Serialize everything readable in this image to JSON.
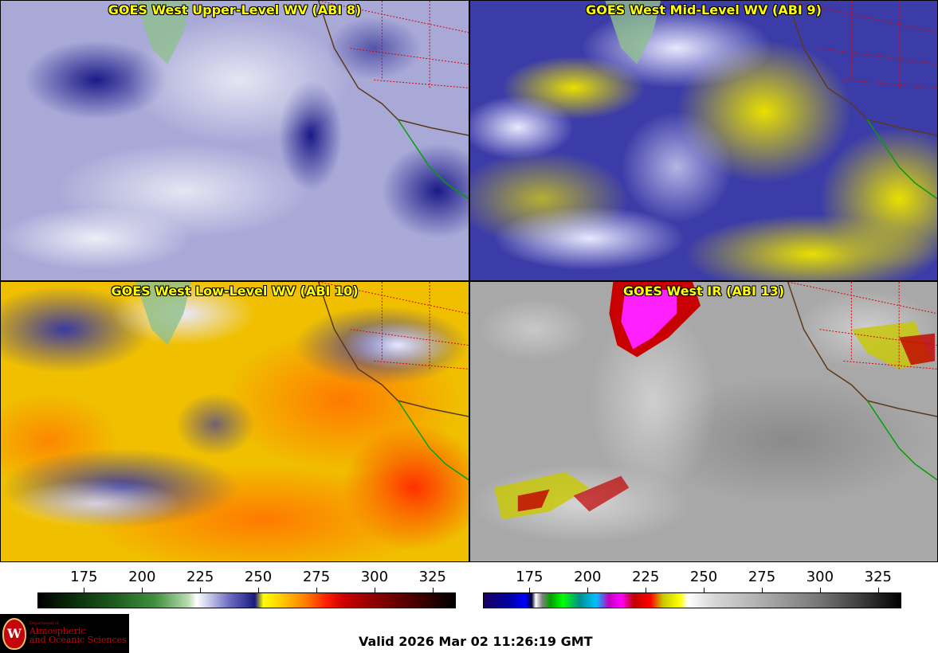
{
  "panels": [
    {
      "id": "p1",
      "title": "GOES West Upper-Level WV (ABI 8)",
      "scheme": "upper"
    },
    {
      "id": "p2",
      "title": "GOES West Mid-Level WV (ABI 9)",
      "scheme": "mid"
    },
    {
      "id": "p3",
      "title": "GOES West Low-Level WV (ABI 10)",
      "scheme": "low"
    },
    {
      "id": "p4",
      "title": "GOES West IR (ABI 13)",
      "scheme": "ir"
    }
  ],
  "colorbars": [
    {
      "name": "water-vapor-colorbar",
      "ticks": [
        "175",
        "200",
        "225",
        "250",
        "275",
        "300",
        "325"
      ],
      "range": [
        155,
        335
      ]
    },
    {
      "name": "ir-colorbar",
      "ticks": [
        "175",
        "200",
        "225",
        "250",
        "275",
        "300",
        "325"
      ],
      "range": [
        155,
        335
      ]
    }
  ],
  "logo": {
    "line1": "Department of",
    "line2": "Atmospheric",
    "line3": "and Oceanic Sciences",
    "crest": "W"
  },
  "valid_time": "Valid 2026 Mar 02 11:26:19 GMT",
  "colors": {
    "title_text": "#ffff00",
    "state_borders": "#dd0000",
    "coastline": "#5a3a1a",
    "mexico_coast": "#00a000"
  }
}
